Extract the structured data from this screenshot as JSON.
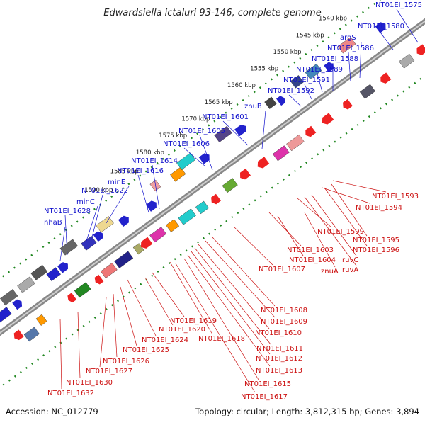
{
  "title": "Edwardsiella ictaluri 93-146, complete genome",
  "accession": "Accession: NC_012779",
  "topology": "Topology: circular; Length: 3,812,315 bp; Genes: 3,894",
  "colors": {
    "backbone": "#777777",
    "dotted_track": "#228822",
    "forward_label": "#1010cc",
    "reverse_label": "#cc1010",
    "forward_gene": "#1a1aee",
    "reverse_gene": "#ee1111"
  },
  "kbp_ticks": [
    "1540 kbp",
    "1545 kbp",
    "1550 kbp",
    "1555 kbp",
    "1560 kbp",
    "1565 kbp",
    "1570 kbp",
    "1575 kbp",
    "1580 kbp",
    "1585 kbp",
    "1590 kbp"
  ],
  "forward_labels": [
    "NT01EI_1575",
    "NT01EI_1580",
    "argS",
    "NT01EI_1586",
    "NT01EI_1588",
    "NT01EI_1589",
    "NT01EI_1591",
    "NT01EI_1592",
    "znuB",
    "NT01EI_1601",
    "NT01EI_1605",
    "NT01EI_1606",
    "NT01EI_1614",
    "NT01EI_1616",
    "minE",
    "NT01EI_1622",
    "minC",
    "NT01EI_1628",
    "nhaB"
  ],
  "reverse_labels": [
    "NT01EI_1593",
    "NT01EI_1594",
    "NT01EI_1599",
    "NT01EI_1595",
    "NT01EI_1596",
    "ruvC",
    "ruvA",
    "NT01EI_1603",
    "NT01EI_1604",
    "znuA",
    "NT01EI_1607",
    "NT01EI_1608",
    "NT01EI_1609",
    "NT01EI_1610",
    "NT01EI_1611",
    "NT01EI_1612",
    "NT01EI_1613",
    "NT01EI_1615",
    "NT01EI_1617",
    "NT01EI_1619",
    "NT01EI_1620",
    "NT01EI_1618",
    "NT01EI_1624",
    "NT01EI_1625",
    "NT01EI_1626",
    "NT01EI_1627",
    "NT01EI_1630",
    "NT01EI_1632"
  ]
}
